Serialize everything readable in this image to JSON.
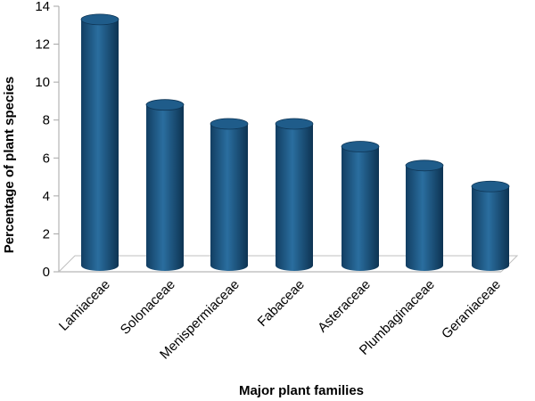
{
  "chart_data": {
    "type": "bar",
    "title": "",
    "xlabel": "Major plant families",
    "ylabel": "Percentage of plant species",
    "categories": [
      "Lamiaceae",
      "Solonaceae",
      "Menispermiaceae",
      "Fabaceae",
      "Asteraceae",
      "Plumbaginaceae",
      "Geraniaceae"
    ],
    "values": [
      13.3,
      8.8,
      7.8,
      7.8,
      6.6,
      5.6,
      4.5
    ],
    "ylim": [
      0,
      14
    ],
    "yticks": [
      0,
      2,
      4,
      6,
      8,
      10,
      12,
      14
    ],
    "grid": false,
    "legend": "none",
    "colors": {
      "bar": "#1f5c8a",
      "bar_dark": "#0f3656",
      "bar_light": "#3f82b8",
      "axis": "#a6a6a6",
      "floor": "#bfbfbf"
    }
  }
}
